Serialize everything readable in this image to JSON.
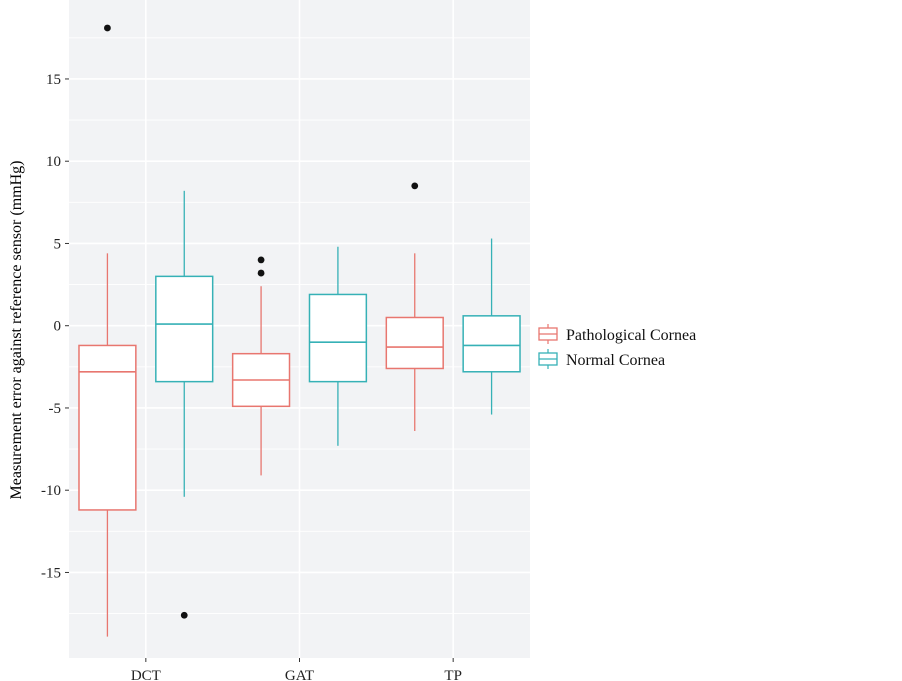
{
  "chart_data": {
    "type": "boxplot",
    "ylabel": "Measurement error against reference sensor (mmHg)",
    "xlabel": "",
    "ylim": [
      -20.2,
      19.8
    ],
    "yticks": [
      -15,
      -10,
      -5,
      0,
      5,
      10,
      15
    ],
    "ytick_labels": [
      "-15",
      "-10",
      "-5",
      "0",
      "5",
      "10",
      "15"
    ],
    "categories": [
      "DCT",
      "GAT",
      "TP"
    ],
    "grid": true,
    "legend_position": "right",
    "series": [
      {
        "name": "Pathological Cornea",
        "color": "#e8766f",
        "boxes": [
          {
            "category": "DCT",
            "whisker_low": -18.9,
            "q1": -11.2,
            "median": -2.8,
            "q3": -1.2,
            "whisker_high": 4.4,
            "outliers": [
              18.1
            ]
          },
          {
            "category": "GAT",
            "whisker_low": -9.1,
            "q1": -4.9,
            "median": -3.3,
            "q3": -1.7,
            "whisker_high": 2.4,
            "outliers": [
              4.0,
              3.2
            ]
          },
          {
            "category": "TP",
            "whisker_low": -6.4,
            "q1": -2.6,
            "median": -1.3,
            "q3": 0.5,
            "whisker_high": 4.4,
            "outliers": [
              8.5
            ]
          }
        ]
      },
      {
        "name": "Normal Cornea",
        "color": "#36b1b6",
        "boxes": [
          {
            "category": "DCT",
            "whisker_low": -10.4,
            "q1": -3.4,
            "median": 0.1,
            "q3": 3.0,
            "whisker_high": 8.2,
            "outliers": [
              -17.6
            ]
          },
          {
            "category": "GAT",
            "whisker_low": -7.3,
            "q1": -3.4,
            "median": -1.0,
            "q3": 1.9,
            "whisker_high": 4.8,
            "outliers": []
          },
          {
            "category": "TP",
            "whisker_low": -5.4,
            "q1": -2.8,
            "median": -1.2,
            "q3": 0.6,
            "whisker_high": 5.3,
            "outliers": []
          }
        ]
      }
    ]
  }
}
